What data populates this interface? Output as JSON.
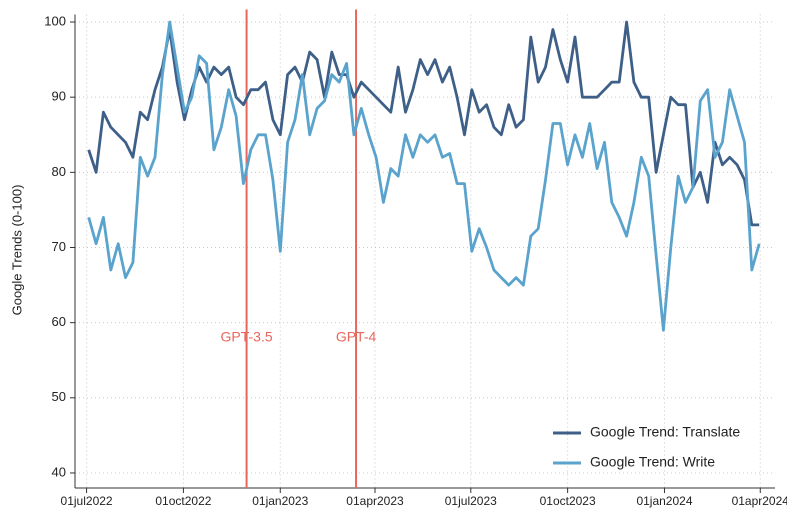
{
  "chart_data": {
    "type": "line",
    "y_label": "Google Trends (0-100)",
    "x": [
      "2022-07-03",
      "2022-07-10",
      "2022-07-17",
      "2022-07-24",
      "2022-07-31",
      "2022-08-07",
      "2022-08-14",
      "2022-08-21",
      "2022-08-28",
      "2022-09-04",
      "2022-09-11",
      "2022-09-18",
      "2022-09-25",
      "2022-10-02",
      "2022-10-09",
      "2022-10-16",
      "2022-10-23",
      "2022-10-30",
      "2022-11-06",
      "2022-11-13",
      "2022-11-20",
      "2022-11-27",
      "2022-12-04",
      "2022-12-11",
      "2022-12-18",
      "2022-12-25",
      "2023-01-01",
      "2023-01-08",
      "2023-01-15",
      "2023-01-22",
      "2023-01-29",
      "2023-02-05",
      "2023-02-12",
      "2023-02-19",
      "2023-02-26",
      "2023-03-05",
      "2023-03-12",
      "2023-03-19",
      "2023-03-26",
      "2023-04-02",
      "2023-04-09",
      "2023-04-16",
      "2023-04-23",
      "2023-04-30",
      "2023-05-07",
      "2023-05-14",
      "2023-05-21",
      "2023-05-28",
      "2023-06-04",
      "2023-06-11",
      "2023-06-18",
      "2023-06-25",
      "2023-07-02",
      "2023-07-09",
      "2023-07-16",
      "2023-07-23",
      "2023-07-30",
      "2023-08-06",
      "2023-08-13",
      "2023-08-20",
      "2023-08-27",
      "2023-09-03",
      "2023-09-10",
      "2023-09-17",
      "2023-09-24",
      "2023-10-01",
      "2023-10-08",
      "2023-10-15",
      "2023-10-22",
      "2023-10-29",
      "2023-11-05",
      "2023-11-12",
      "2023-11-19",
      "2023-11-26",
      "2023-12-03",
      "2023-12-10",
      "2023-12-17",
      "2023-12-24",
      "2023-12-31",
      "2024-01-07",
      "2024-01-14",
      "2024-01-21",
      "2024-01-28",
      "2024-02-04",
      "2024-02-11",
      "2024-02-18",
      "2024-02-25",
      "2024-03-03",
      "2024-03-10",
      "2024-03-17",
      "2024-03-24",
      "2024-03-31"
    ],
    "series": [
      {
        "name": "Google Trend: Translate",
        "color": "#3e5f88",
        "values": [
          83,
          80,
          88,
          86,
          85,
          84,
          82,
          88,
          87,
          91,
          94,
          99,
          92,
          87,
          91,
          94,
          92,
          94,
          93,
          94,
          90,
          89,
          91,
          91,
          92,
          87,
          85,
          93,
          94,
          92,
          96,
          95,
          90,
          96,
          93,
          93,
          90,
          92,
          91,
          90,
          89,
          88,
          94,
          88,
          91,
          95,
          93,
          95,
          92,
          94,
          90,
          85,
          91,
          88,
          89,
          86,
          85,
          89,
          86,
          87,
          98,
          92,
          94,
          99,
          95,
          92,
          98,
          90,
          90,
          90,
          91,
          92,
          92,
          100,
          92,
          90,
          90,
          80,
          85,
          90,
          89,
          89,
          78,
          80,
          76,
          84,
          81,
          82,
          81,
          79,
          73,
          73
        ]
      },
      {
        "name": "Google Trend: Write",
        "color": "#5aa3cd",
        "values": [
          74,
          70.5,
          74,
          67,
          70.5,
          66,
          68,
          82,
          79.5,
          82,
          93,
          100,
          94,
          88,
          90,
          95.5,
          94.5,
          83,
          86,
          91,
          87.5,
          78.5,
          83,
          85,
          85,
          79,
          69.5,
          84,
          87,
          93,
          85,
          88.5,
          89.5,
          93,
          92,
          94.5,
          85,
          88.5,
          85,
          82,
          76,
          80.5,
          79.5,
          85,
          82,
          85,
          84,
          85,
          82,
          82.5,
          78.5,
          78.5,
          69.5,
          72.5,
          70,
          67,
          66,
          65,
          66,
          65,
          71.5,
          72.5,
          79,
          86.5,
          86.5,
          81,
          85,
          82,
          86.5,
          80.5,
          84,
          76,
          74,
          71.5,
          76,
          82,
          79.5,
          69,
          59,
          70,
          79.5,
          76,
          78,
          89.5,
          91,
          82,
          84,
          91,
          87.5,
          84,
          67,
          70.5
        ]
      }
    ],
    "xlim": [
      "2022-06-20",
      "2024-04-15"
    ],
    "xticks": [
      {
        "value": "2022-07-01",
        "label": "01jul2022"
      },
      {
        "value": "2022-10-01",
        "label": "01oct2022"
      },
      {
        "value": "2023-01-01",
        "label": "01jan2023"
      },
      {
        "value": "2023-04-01",
        "label": "01apr2023"
      },
      {
        "value": "2023-07-01",
        "label": "01jul2023"
      },
      {
        "value": "2023-10-01",
        "label": "01oct2023"
      },
      {
        "value": "2024-01-01",
        "label": "01jan2024"
      },
      {
        "value": "2024-04-01",
        "label": "01apr2024"
      }
    ],
    "ylim": [
      38,
      101
    ],
    "yticks": [
      40,
      50,
      60,
      70,
      80,
      90,
      100
    ],
    "grid": true,
    "legend": "lower right",
    "annotations": [
      {
        "label": "GPT-3.5",
        "x": "2022-11-30",
        "color": "#e8675c"
      },
      {
        "label": "GPT-4",
        "x": "2023-03-14",
        "color": "#e8675c"
      }
    ]
  }
}
